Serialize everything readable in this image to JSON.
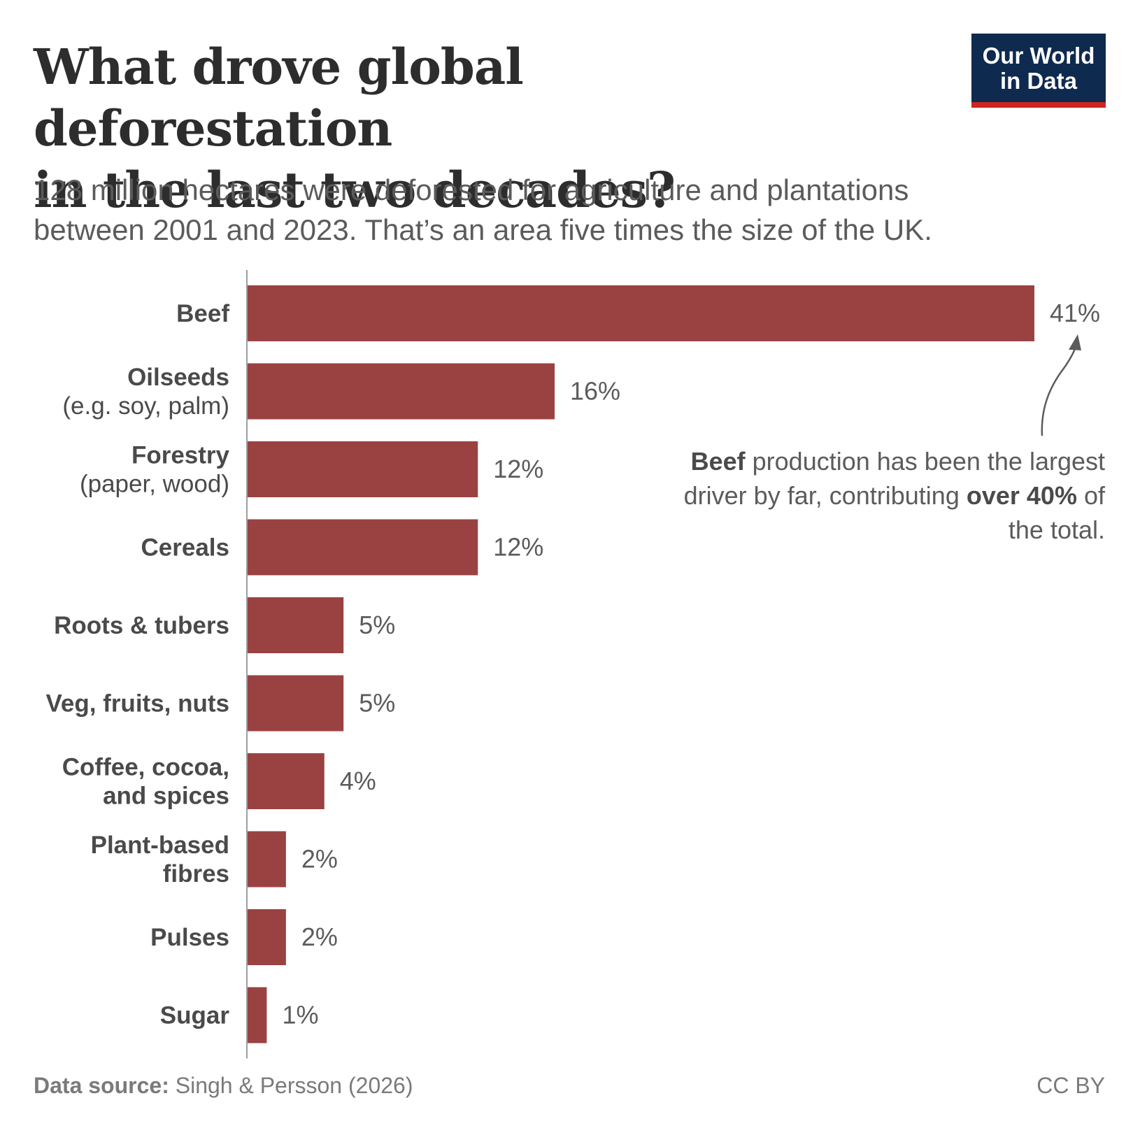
{
  "header": {
    "title_line1": "What drove global deforestation",
    "title_line2": "in the last two decades?",
    "subtitle_line1": "128 million hectares were deforested for agriculture and plantations",
    "subtitle_line2": "between 2001 and 2023. That’s an area five times the size of the UK."
  },
  "logo": {
    "line1": "Our World",
    "line2": "in Data"
  },
  "annotation": {
    "part1_bold": "Beef",
    "part2": " production has been the largest driver by far, contributing ",
    "part3_bold": "over 40%",
    "part4": " of the total."
  },
  "footer": {
    "source_label": "Data source:",
    "source_text": " Singh & Persson (2026)",
    "license": "CC BY"
  },
  "colors": {
    "bar": "#9a4242",
    "axis": "#9e9e9e",
    "label": "#4a4a4a",
    "value": "#5b5b5b"
  },
  "chart_data": {
    "type": "bar",
    "orientation": "horizontal",
    "categories": [
      {
        "label": "Beef",
        "sublabel": ""
      },
      {
        "label": "Oilseeds",
        "sublabel": "(e.g. soy, palm)"
      },
      {
        "label": "Forestry",
        "sublabel": "(paper, wood)"
      },
      {
        "label": "Cereals",
        "sublabel": ""
      },
      {
        "label": "Roots & tubers",
        "sublabel": ""
      },
      {
        "label": "Veg, fruits, nuts",
        "sublabel": ""
      },
      {
        "label": "Coffee, cocoa,",
        "label2": "and spices",
        "sublabel": ""
      },
      {
        "label": "Plant-based",
        "label2": "fibres",
        "sublabel": ""
      },
      {
        "label": "Pulses",
        "sublabel": ""
      },
      {
        "label": "Sugar",
        "sublabel": ""
      }
    ],
    "values": [
      41,
      16,
      12,
      12,
      5,
      5,
      4,
      2,
      2,
      1
    ],
    "value_labels": [
      "41%",
      "16%",
      "12%",
      "12%",
      "5%",
      "5%",
      "4%",
      "2%",
      "2%",
      "1%"
    ],
    "title": "What drove global deforestation in the last two decades?",
    "xlabel": "",
    "ylabel": "",
    "xlim": [
      0,
      41
    ],
    "grid": false,
    "legend": "none"
  }
}
